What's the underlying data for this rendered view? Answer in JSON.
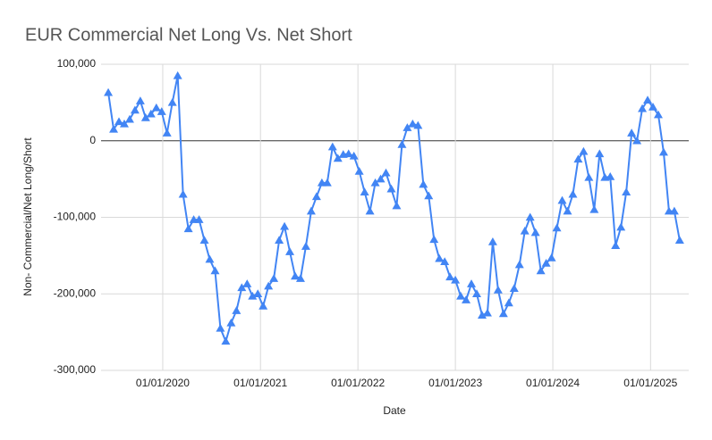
{
  "chart_data": {
    "type": "line",
    "title": "EUR Commercial Net Long Vs. Net Short",
    "x_label": "Date",
    "y_label": "Non- Commercial/Net Long/Short",
    "grid": true,
    "marker": "triangle",
    "xlim": [
      "2019-05-15",
      "2025-05-24"
    ],
    "xticks": [
      {
        "value": "2020-01-01",
        "label": "01/01/2020"
      },
      {
        "value": "2021-01-01",
        "label": "01/01/2021"
      },
      {
        "value": "2022-01-01",
        "label": "01/01/2022"
      },
      {
        "value": "2023-01-01",
        "label": "01/01/2023"
      },
      {
        "value": "2024-01-01",
        "label": "01/01/2024"
      },
      {
        "value": "2025-01-01",
        "label": "01/01/2025"
      }
    ],
    "ylim": [
      -300000,
      100000
    ],
    "yticks": [
      {
        "value": -300000,
        "label": "-300,000"
      },
      {
        "value": -200000,
        "label": "-200,000"
      },
      {
        "value": -100000,
        "label": "-100,000"
      },
      0,
      {
        "value": 100000,
        "label": "100,000"
      }
    ],
    "x": [
      "2019-06-11",
      "2019-07-01",
      "2019-07-21",
      "2019-08-10",
      "2019-08-30",
      "2019-09-19",
      "2019-10-09",
      "2019-10-29",
      "2019-11-18",
      "2019-12-08",
      "2019-12-28",
      "2020-01-17",
      "2020-02-06",
      "2020-02-26",
      "2020-03-17",
      "2020-04-06",
      "2020-04-26",
      "2020-05-16",
      "2020-06-05",
      "2020-06-25",
      "2020-07-15",
      "2020-08-04",
      "2020-08-24",
      "2020-09-13",
      "2020-10-03",
      "2020-10-23",
      "2020-11-12",
      "2020-12-02",
      "2020-12-22",
      "2021-01-11",
      "2021-01-31",
      "2021-02-20",
      "2021-03-12",
      "2021-04-01",
      "2021-04-21",
      "2021-05-11",
      "2021-05-31",
      "2021-06-20",
      "2021-07-10",
      "2021-07-30",
      "2021-08-19",
      "2021-09-08",
      "2021-09-28",
      "2021-10-18",
      "2021-11-07",
      "2021-11-27",
      "2021-12-17",
      "2022-01-06",
      "2022-01-26",
      "2022-02-15",
      "2022-03-07",
      "2022-03-27",
      "2022-04-16",
      "2022-05-06",
      "2022-05-26",
      "2022-06-15",
      "2022-07-05",
      "2022-07-25",
      "2022-08-14",
      "2022-09-03",
      "2022-09-23",
      "2022-10-13",
      "2022-11-02",
      "2022-11-22",
      "2022-12-12",
      "2023-01-01",
      "2023-01-21",
      "2023-02-10",
      "2023-03-02",
      "2023-03-22",
      "2023-04-11",
      "2023-05-01",
      "2023-05-21",
      "2023-06-10",
      "2023-06-30",
      "2023-07-20",
      "2023-08-09",
      "2023-08-29",
      "2023-09-18",
      "2023-10-08",
      "2023-10-28",
      "2023-11-17",
      "2023-12-07",
      "2023-12-27",
      "2024-01-16",
      "2024-02-05",
      "2024-02-25",
      "2024-03-16",
      "2024-04-05",
      "2024-04-25",
      "2024-05-15",
      "2024-06-04",
      "2024-06-24",
      "2024-07-14",
      "2024-08-03",
      "2024-08-23",
      "2024-09-12",
      "2024-10-02",
      "2024-10-22",
      "2024-11-11",
      "2024-12-01",
      "2024-12-21",
      "2025-01-10",
      "2025-01-30",
      "2025-02-19",
      "2025-03-11",
      "2025-03-31",
      "2025-04-20"
    ],
    "series": [
      {
        "name": "Non- Commercial/Net Long/Short",
        "color": "#4285f4",
        "values": [
          63000,
          15000,
          25000,
          22000,
          28000,
          40000,
          52000,
          30000,
          35000,
          43000,
          38000,
          10000,
          50000,
          85000,
          -70000,
          -115000,
          -103000,
          -103000,
          -130000,
          -155000,
          -170000,
          -245000,
          -262000,
          -238000,
          -222000,
          -192000,
          -187000,
          -203000,
          -200000,
          -216000,
          -190000,
          -180000,
          -130000,
          -112000,
          -145000,
          -177000,
          -180000,
          -138000,
          -92000,
          -73000,
          -55000,
          -55000,
          -8000,
          -23000,
          -18000,
          -17000,
          -20000,
          -40000,
          -67000,
          -92000,
          -55000,
          -50000,
          -42000,
          -63000,
          -85000,
          -5000,
          17000,
          22000,
          20000,
          -57000,
          -72000,
          -129000,
          -154000,
          -158000,
          -178000,
          -182000,
          -203000,
          -208000,
          -187000,
          -200000,
          -228000,
          -225000,
          -132000,
          -195000,
          -226000,
          -212000,
          -193000,
          -162000,
          -118000,
          -100000,
          -120000,
          -170000,
          -160000,
          -153000,
          -114000,
          -78000,
          -92000,
          -70000,
          -24000,
          -14000,
          -48000,
          -90000,
          -17000,
          -48000,
          -47000,
          -137000,
          -113000,
          -67000,
          10000,
          0,
          42000,
          53000,
          44000,
          34000,
          -15000,
          -92000,
          -92000,
          -130000
        ]
      }
    ]
  }
}
